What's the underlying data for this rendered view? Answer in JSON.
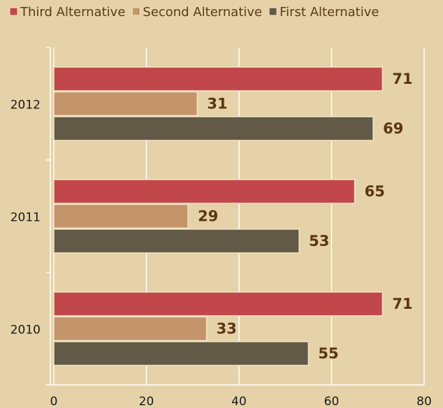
{
  "chart_data": {
    "type": "hbar",
    "categories": [
      "2010",
      "2011",
      "2012"
    ],
    "series": [
      {
        "name": "Third Alternative",
        "color": "#c2474a",
        "values": [
          71,
          65,
          71
        ]
      },
      {
        "name": "Second Alternative",
        "color": "#c4956b",
        "values": [
          33,
          29,
          31
        ]
      },
      {
        "name": "First Alternative",
        "color": "#625a47",
        "values": [
          55,
          53,
          69
        ]
      }
    ],
    "xlim": [
      0,
      80
    ],
    "xticks": [
      0,
      20,
      40,
      60,
      80
    ],
    "grid": true,
    "legend": "top"
  }
}
